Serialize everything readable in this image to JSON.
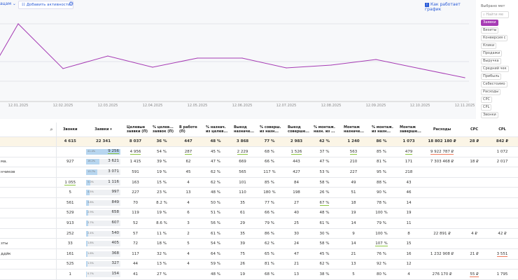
{
  "toolbar": {
    "group_label": "ацам",
    "add_activity": "Добавить активность",
    "how_chart_works": "Как работает график"
  },
  "metrics_panel": {
    "title": "Выбрано мет",
    "search_placeholder": "Найти ме",
    "chips": [
      "Заявки",
      "Визиты",
      "Конверсия с",
      "Клики",
      "Продажи",
      "Выручка",
      "Средний чек",
      "Прибыль",
      "Себестоимо",
      "Расходы",
      "CPC",
      "CPL",
      "Звонки"
    ],
    "selected": "Заявки"
  },
  "chart_data": {
    "type": "line",
    "color": "#a63bb4",
    "grid": true,
    "x": [
      "",
      "12.01.2025",
      "12.02.2025",
      "12.03.2025",
      "12.04.2025",
      "12.05.2025",
      "12.06.2025",
      "12.07.2025",
      "12.08.2025",
      "12.09.2025",
      "12.10.2025",
      "12.11.2025"
    ],
    "series": [
      {
        "values": [
          66,
          111,
          47,
          65,
          49,
          62,
          62,
          48,
          52,
          60,
          47,
          34
        ]
      }
    ],
    "ylim": [
      0,
      145
    ]
  },
  "table": {
    "headers": [
      "",
      "Звонки",
      "Заявки ▾",
      "Целевые заявки (П)",
      "% целев... заявок (П)",
      "В работе (П)",
      "% назнач. из целев...",
      "Выезд назначе...",
      "% соверш. из назн...",
      "Выезд соверше...",
      "% монтаж. назн. из ...",
      "Монтаж назначе...",
      "% монтаж. из назн...",
      "Монтаж заверше...",
      "Расходы",
      "CPC",
      "CPL"
    ],
    "total": [
      "",
      "4 615",
      "22 341",
      "8 037",
      "36 %",
      "447",
      "48 %",
      "3 868",
      "77 %",
      "2 983",
      "42 %",
      "1 240",
      "86 %",
      "1 073",
      "18 802 180 ₽",
      "28 ₽",
      "842 ₽"
    ],
    "rows": [
      {
        "c": [
          "",
          "",
          "9 256",
          "4 956",
          "54 %",
          "287",
          "45 %",
          "2 229",
          "68 %",
          "1 526",
          "37 %",
          "563",
          "85 %",
          "479",
          "9 922 787 ₽",
          "",
          "1 072"
        ],
        "share": "41.4%",
        "pct": 41.4
      },
      {
        "c": [
          "ма.",
          "927",
          "3 621",
          "1 415",
          "39 %",
          "62",
          "47 %",
          "669",
          "66 %",
          "443",
          "47 %",
          "210",
          "81 %",
          "171",
          "7 303 468 ₽",
          "18 ₽",
          "2 017"
        ],
        "share": "16.2%",
        "pct": 16.2
      },
      {
        "c": [
          "нчиков",
          "",
          "3 071",
          "591",
          "19 %",
          "45",
          "62 %",
          "565",
          "117 %",
          "427",
          "53 %",
          "227",
          "95 %",
          "218",
          "",
          "",
          ""
        ],
        "share": "13.7%",
        "pct": 13.7
      },
      {
        "c": [
          "",
          "1 055",
          "1 116",
          "163",
          "15 %",
          "4",
          "62 %",
          "101",
          "85 %",
          "84",
          "58 %",
          "49",
          "88 %",
          "43",
          "",
          "",
          ""
        ],
        "share": "5.0%",
        "pct": 5.0
      },
      {
        "c": [
          "",
          "5",
          "997",
          "227",
          "23 %",
          "13",
          "48 %",
          "110",
          "180 %",
          "198",
          "26 %",
          "51",
          "90 %",
          "46",
          "",
          "",
          ""
        ],
        "share": "4.5%",
        "pct": 4.5
      },
      {
        "c": [
          "",
          "561",
          "849",
          "70",
          "8.2 %",
          "4",
          "50 %",
          "35",
          "77 %",
          "27",
          "67 %",
          "18",
          "78 %",
          "14",
          "",
          "",
          ""
        ],
        "share": "3.8%",
        "pct": 3.8
      },
      {
        "c": [
          "",
          "529",
          "658",
          "119",
          "19 %",
          "6",
          "51 %",
          "61",
          "66 %",
          "40",
          "48 %",
          "19",
          "100 %",
          "19",
          "",
          "",
          ""
        ],
        "share": "2.9%",
        "pct": 2.9
      },
      {
        "c": [
          "",
          "913",
          "607",
          "52",
          "8.6 %",
          "3",
          "56 %",
          "29",
          "79 %",
          "25",
          "61 %",
          "14",
          "79 %",
          "11",
          "",
          "",
          ""
        ],
        "share": "2.7%",
        "pct": 2.7
      },
      {
        "c": [
          "",
          "252",
          "540",
          "57",
          "11 %",
          "2",
          "61 %",
          "35",
          "86 %",
          "30",
          "30 %",
          "9",
          "100 %",
          "8",
          "22 891 ₽",
          "4 ₽",
          "42 ₽"
        ],
        "share": "2.4%",
        "pct": 2.4
      },
      {
        "c": [
          "зты",
          "33",
          "405",
          "72",
          "18 %",
          "5",
          "54 %",
          "39",
          "62 %",
          "24",
          "58 %",
          "14",
          "107 %",
          "15",
          "",
          "",
          ""
        ],
        "share": "1.8%",
        "pct": 1.8
      },
      {
        "c": [
          "ддйк",
          "161",
          "368",
          "117",
          "32 %",
          "4",
          "64 %",
          "75",
          "65 %",
          "47",
          "45 %",
          "21",
          "76 %",
          "16",
          "1 232 908 ₽",
          "21 ₽",
          "3 551"
        ],
        "share": "1.6%",
        "pct": 1.6
      },
      {
        "c": [
          "",
          "525",
          "327",
          "44",
          "13 %",
          "4",
          "59 %",
          "26",
          "81 %",
          "21",
          "62 %",
          "13",
          "92 %",
          "12",
          "",
          "",
          ""
        ],
        "share": "1.5%",
        "pct": 1.5
      },
      {
        "c": [
          "",
          "1",
          "154",
          "41",
          "27 %",
          "",
          "48 %",
          "19",
          "68 %",
          "13",
          "38 %",
          "5",
          "80 %",
          "4",
          "276 170 ₽",
          "55 ₽",
          "1 795"
        ],
        "share": "0.7%",
        "pct": 0.7
      }
    ]
  }
}
